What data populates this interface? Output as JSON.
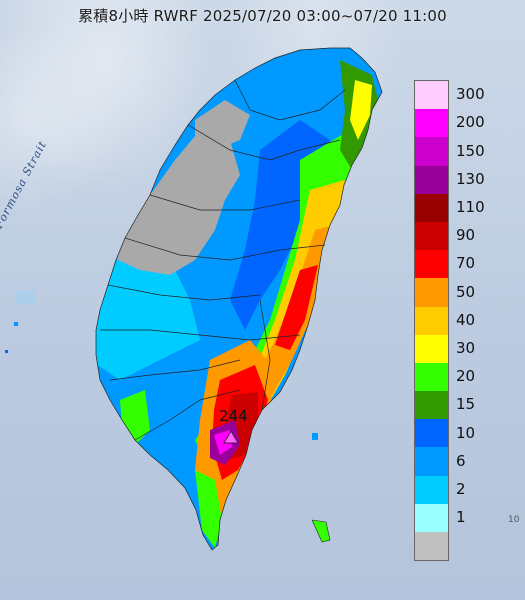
{
  "map": {
    "title": "累積8小時 RWRF 2025/07/20 03:00~07/20 11:00",
    "strait_label": "Formosa Strait",
    "max_value_label": "244",
    "max_marker": "triangle-marker",
    "edge_mark": "10"
  },
  "legend": {
    "title": "",
    "items": [
      {
        "label": "300",
        "color": "#ffccff"
      },
      {
        "label": "200",
        "color": "#ff00ff"
      },
      {
        "label": "150",
        "color": "#cc00cc"
      },
      {
        "label": "130",
        "color": "#990099"
      },
      {
        "label": "110",
        "color": "#990000"
      },
      {
        "label": "90",
        "color": "#cc0000"
      },
      {
        "label": "70",
        "color": "#ff0000"
      },
      {
        "label": "50",
        "color": "#ff9900"
      },
      {
        "label": "40",
        "color": "#ffcc00"
      },
      {
        "label": "30",
        "color": "#ffff00"
      },
      {
        "label": "20",
        "color": "#33ff00"
      },
      {
        "label": "15",
        "color": "#339900"
      },
      {
        "label": "10",
        "color": "#0066ff"
      },
      {
        "label": "6",
        "color": "#0099ff"
      },
      {
        "label": "2",
        "color": "#00ccff"
      },
      {
        "label": "1",
        "color": "#99ffff"
      },
      {
        "label": "",
        "color": "#c0c0c0"
      }
    ]
  },
  "colors": {
    "no_rain": "#a9a9a9",
    "land_outline": "#222222",
    "sea": "#c4d2e4"
  }
}
